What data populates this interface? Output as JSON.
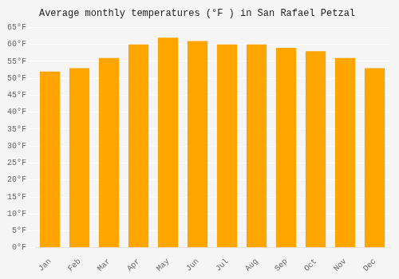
{
  "chart_data": {
    "type": "bar",
    "title": "Average monthly temperatures (°F ) in San Rafael Petzal",
    "categories": [
      "Jan",
      "Feb",
      "Mar",
      "Apr",
      "May",
      "Jun",
      "Jul",
      "Aug",
      "Sep",
      "Oct",
      "Nov",
      "Dec"
    ],
    "values": [
      52,
      53,
      56,
      60,
      62,
      61,
      60,
      60,
      59,
      58,
      56,
      53
    ],
    "color": "#FFA500",
    "ylim": [
      0,
      65
    ],
    "yticks": [
      {
        "value": 0,
        "label": "0°F"
      },
      {
        "value": 5,
        "label": "5°F"
      },
      {
        "value": 10,
        "label": "10°F"
      },
      {
        "value": 15,
        "label": "15°F"
      },
      {
        "value": 20,
        "label": "20°F"
      },
      {
        "value": 25,
        "label": "25°F"
      },
      {
        "value": 30,
        "label": "30°F"
      },
      {
        "value": 35,
        "label": "35°F"
      },
      {
        "value": 40,
        "label": "40°F"
      },
      {
        "value": 45,
        "label": "45°F"
      },
      {
        "value": 50,
        "label": "50°F"
      },
      {
        "value": 55,
        "label": "55°F"
      },
      {
        "value": 60,
        "label": "60°F"
      },
      {
        "value": 65,
        "label": "65°F"
      }
    ],
    "grid": true
  }
}
